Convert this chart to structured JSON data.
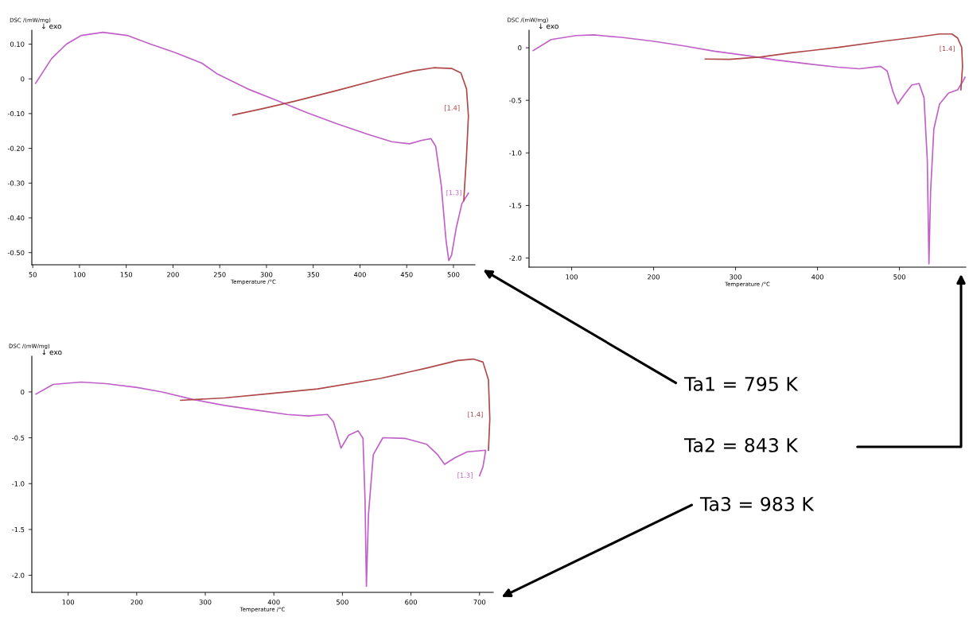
{
  "chart_data": [
    {
      "type": "line",
      "xlabel": "Temperature /°C",
      "ylabel": "DSC /(mW/mg)",
      "xlim": [
        49,
        523
      ],
      "ylim": [
        -0.535,
        0.14
      ],
      "xticks": [
        50,
        100,
        150,
        200,
        250,
        300,
        350,
        400,
        450,
        500
      ],
      "yticks": [
        {
          "value": 0.1,
          "label": "0.10"
        },
        0,
        {
          "value": -0.1,
          "label": "-0.10"
        },
        {
          "value": -0.2,
          "label": "-0.20"
        },
        {
          "value": -0.3,
          "label": "-0.30"
        },
        {
          "value": -0.4,
          "label": "-0.40"
        },
        {
          "value": -0.5,
          "label": "-0.50"
        }
      ],
      "grid": false,
      "legend": false,
      "marker": "none",
      "line_style": "solid",
      "series": [
        {
          "color": "#c060c8",
          "x": [
            53,
            70,
            86,
            102,
            125,
            151,
            176,
            202,
            231,
            247,
            280,
            312,
            344,
            375,
            408,
            434,
            453,
            466,
            476,
            481,
            487,
            492,
            495,
            498,
            503,
            509,
            516
          ],
          "values": [
            -0.013,
            0.058,
            0.1,
            0.125,
            0.134,
            0.125,
            0.1,
            0.076,
            0.045,
            0.015,
            -0.029,
            -0.063,
            -0.098,
            -0.129,
            -0.159,
            -0.181,
            -0.187,
            -0.177,
            -0.172,
            -0.194,
            -0.307,
            -0.463,
            -0.523,
            -0.507,
            -0.429,
            -0.359,
            -0.329
          ]
        },
        {
          "color": "#b04848",
          "x": [
            511,
            514,
            516,
            514,
            508,
            498,
            479,
            457,
            425,
            376,
            329,
            297,
            264
          ],
          "values": [
            -0.351,
            -0.22,
            -0.107,
            -0.029,
            0.017,
            0.03,
            0.032,
            0.023,
            0.002,
            -0.033,
            -0.065,
            -0.085,
            -0.104
          ]
        }
      ],
      "annotations": [
        "↓ exo",
        "Ta1 = 795 K",
        {
          "text": "[1.4]",
          "x": 514,
          "y": -0.085
        },
        {
          "text": "[1.3]",
          "x": 516,
          "y": -0.329
        }
      ]
    },
    {
      "type": "line",
      "xlabel": "Temperature /°C",
      "ylabel": "DSC /(mW/mg)",
      "xlim": [
        48,
        581
      ],
      "ylim": [
        -2.087,
        0.167
      ],
      "xticks": [
        100,
        200,
        300,
        400,
        500
      ],
      "yticks": [
        0,
        {
          "value": -0.5,
          "label": "-0.5"
        },
        {
          "value": -1.0,
          "label": "-1.0"
        },
        {
          "value": -1.5,
          "label": "-1.5"
        },
        {
          "value": -2.0,
          "label": "-2.0"
        }
      ],
      "grid": false,
      "legend": false,
      "marker": "none",
      "line_style": "solid",
      "series": [
        {
          "color": "#c060c8",
          "x": [
            53,
            75,
            105,
            127,
            161,
            199,
            237,
            274,
            312,
            349,
            387,
            425,
            451,
            477,
            485,
            492,
            498,
            506,
            515,
            524,
            530,
            534,
            536,
            538,
            542,
            549,
            560,
            571,
            577,
            580
          ],
          "values": [
            -0.027,
            0.078,
            0.116,
            0.122,
            0.099,
            0.063,
            0.018,
            -0.033,
            -0.072,
            -0.116,
            -0.152,
            -0.185,
            -0.2,
            -0.176,
            -0.221,
            -0.415,
            -0.534,
            -0.445,
            -0.355,
            -0.34,
            -0.475,
            -1.072,
            -2.057,
            -1.37,
            -0.773,
            -0.534,
            -0.43,
            -0.4,
            -0.325,
            -0.28
          ]
        },
        {
          "color": "#b04848",
          "x": [
            575,
            577,
            576,
            571,
            564,
            549,
            519,
            481,
            425,
            368,
            331,
            293,
            263
          ],
          "values": [
            -0.4,
            -0.176,
            0.003,
            0.093,
            0.131,
            0.131,
            0.099,
            0.063,
            0.003,
            -0.048,
            -0.087,
            -0.11,
            -0.107
          ]
        }
      ],
      "annotations": [
        "↓ exo",
        "Ta2 = 843 K",
        {
          "text": "[1.4]",
          "x": 576,
          "y": -0.012
        }
      ]
    },
    {
      "type": "line",
      "xlabel": "Temperature /°C",
      "ylabel": "DSC /(mW/mg)",
      "xlim": [
        47,
        720
      ],
      "ylim": [
        -2.186,
        0.39
      ],
      "xticks": [
        100,
        200,
        300,
        400,
        500,
        600,
        700
      ],
      "yticks": [
        0,
        {
          "value": -0.5,
          "label": "-0.5"
        },
        {
          "value": -1.0,
          "label": "-1.0"
        },
        {
          "value": -1.5,
          "label": "-1.5"
        },
        {
          "value": -2.0,
          "label": "-2.0"
        }
      ],
      "grid": false,
      "legend": false,
      "marker": "none",
      "line_style": "solid",
      "series": [
        {
          "color": "#c060c8",
          "x": [
            53,
            78,
            119,
            155,
            201,
            237,
            282,
            328,
            373,
            419,
            450,
            478,
            487,
            498,
            509,
            523,
            530,
            533,
            535,
            538,
            545,
            559,
            591,
            623,
            639,
            649,
            664,
            682,
            709,
            705,
            700
          ],
          "values": [
            -0.023,
            0.082,
            0.108,
            0.091,
            0.049,
            0,
            -0.082,
            -0.147,
            -0.196,
            -0.245,
            -0.261,
            -0.245,
            -0.326,
            -0.613,
            -0.473,
            -0.424,
            -0.506,
            -1.175,
            -2.121,
            -1.338,
            -0.685,
            -0.499,
            -0.506,
            -0.571,
            -0.685,
            -0.79,
            -0.718,
            -0.653,
            -0.636,
            -0.816,
            -0.914
          ]
        },
        {
          "color": "#b04848",
          "x": [
            713,
            715,
            713,
            705,
            691,
            668,
            623,
            555,
            464,
            396,
            328,
            264
          ],
          "values": [
            -0.636,
            -0.294,
            0.131,
            0.326,
            0.359,
            0.343,
            0.261,
            0.147,
            0.033,
            -0.016,
            -0.065,
            -0.091
          ]
        }
      ],
      "annotations": [
        "↓ exo",
        "Ta3 = 983 K",
        {
          "text": "[1.4]",
          "x": 715,
          "y": -0.25
        },
        {
          "text": "[1.3]",
          "x": 700,
          "y": -0.914
        }
      ]
    }
  ]
}
